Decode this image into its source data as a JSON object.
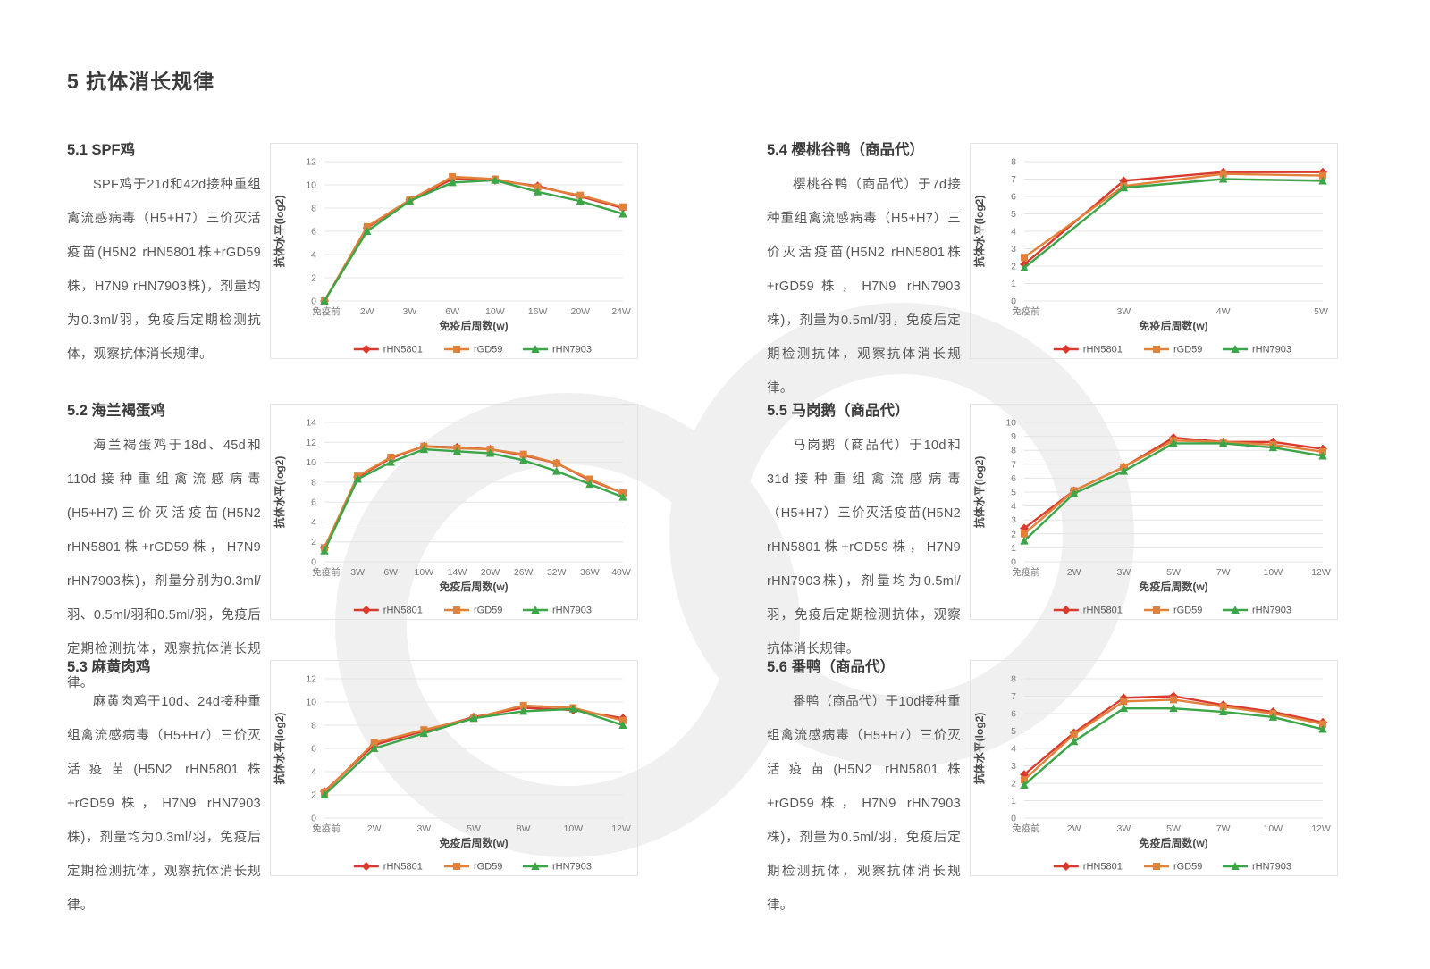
{
  "page": {
    "title": "5 抗体消长规律"
  },
  "colors": {
    "rHN5801": "#d93a2e",
    "rGD59": "#e0823c",
    "rHN7903": "#3ba548",
    "grid": "#e4e4e4",
    "tick_text": "#787878",
    "axis_title": "#4a4a4a",
    "heading": "#3b3b3b",
    "body_text": "#565656",
    "watermark": "#f0f0f0"
  },
  "legend": {
    "items": [
      "rHN5801",
      "rGD59",
      "rHN7903"
    ]
  },
  "sections": [
    {
      "heading": "5.1 SPF鸡",
      "body": "SPF鸡于21d和42d接种重组禽流感病毒（H5+H7）三价灭活疫苗(H5N2 rHN5801株+rGD59株，H7N9 rHN7903株)，剂量均为0.3ml/羽，免疫后定期检测抗体，观察抗体消长规律。"
    },
    {
      "heading": "5.2 海兰褐蛋鸡",
      "body": "海兰褐蛋鸡于18d、45d和110d接种重组禽流感病毒(H5+H7)三价灭活疫苗(H5N2 rHN5801株+rGD59株，H7N9 rHN7903株)，剂量分别为0.3ml/羽、0.5ml/羽和0.5ml/羽，免疫后定期检测抗体，观察抗体消长规律。"
    },
    {
      "heading": "5.3 麻黄肉鸡",
      "body": "麻黄肉鸡于10d、24d接种重组禽流感病毒（H5+H7）三价灭活疫苗(H5N2 rHN5801株+rGD59株，H7N9 rHN7903株)，剂量均为0.3ml/羽，免疫后定期检测抗体，观察抗体消长规律。"
    },
    {
      "heading": "5.4 樱桃谷鸭（商品代）",
      "body": "樱桃谷鸭（商品代）于7d接种重组禽流感病毒（H5+H7）三价灭活疫苗(H5N2 rHN5801株+rGD59株，H7N9 rHN7903株)，剂量为0.5ml/羽，免疫后定期检测抗体，观察抗体消长规律。"
    },
    {
      "heading": "5.5 马岗鹅（商品代）",
      "body": "马岗鹅（商品代）于10d和31d接种重组禽流感病毒（H5+H7）三价灭活疫苗(H5N2 rHN5801株+rGD59株，H7N9 rHN7903株)，剂量均为0.5ml/羽，免疫后定期检测抗体，观察抗体消长规律。"
    },
    {
      "heading": "5.6 番鸭（商品代）",
      "body": "番鸭（商品代）于10d接种重组禽流感病毒（H5+H7）三价灭活疫苗(H5N2 rHN5801株+rGD59株，H7N9 rHN7903株)，剂量为0.5ml/羽，免疫后定期检测抗体，观察抗体消长规律。"
    }
  ],
  "chart_data": [
    {
      "type": "line",
      "title": "5.1 SPF鸡",
      "categories": [
        "免疫前",
        "2W",
        "3W",
        "6W",
        "10W",
        "16W",
        "20W",
        "24W"
      ],
      "xlabel": "免疫后周数(w)",
      "ylabel": "抗体水平(log2)",
      "ylim": [
        0,
        12
      ],
      "ystep": 2,
      "grid": true,
      "legend_position": "bottom",
      "series": [
        {
          "name": "rHN5801",
          "color": "#d93a2e",
          "marker": "diamond",
          "values": [
            0,
            6.3,
            8.7,
            10.5,
            10.4,
            9.9,
            9.0,
            8.0
          ]
        },
        {
          "name": "rGD59",
          "color": "#e0823c",
          "marker": "square",
          "values": [
            0,
            6.4,
            8.7,
            10.7,
            10.5,
            9.8,
            9.1,
            8.1
          ]
        },
        {
          "name": "rHN7903",
          "color": "#3ba548",
          "marker": "triangle",
          "values": [
            0,
            6.0,
            8.6,
            10.2,
            10.4,
            9.4,
            8.6,
            7.5
          ]
        }
      ]
    },
    {
      "type": "line",
      "title": "5.2 海兰褐蛋鸡",
      "categories": [
        "免疫前",
        "3W",
        "6W",
        "10W",
        "14W",
        "20W",
        "26W",
        "32W",
        "36W",
        "40W"
      ],
      "xlabel": "免疫后周数(w)",
      "ylabel": "抗体水平(log2)",
      "ylim": [
        0,
        14
      ],
      "ystep": 2,
      "grid": true,
      "legend_position": "bottom",
      "series": [
        {
          "name": "rHN5801",
          "color": "#d93a2e",
          "marker": "diamond",
          "values": [
            1.4,
            8.5,
            10.4,
            11.6,
            11.5,
            11.3,
            10.7,
            9.9,
            8.2,
            6.9
          ]
        },
        {
          "name": "rGD59",
          "color": "#e0823c",
          "marker": "square",
          "values": [
            1.4,
            8.6,
            10.5,
            11.6,
            11.4,
            11.3,
            10.8,
            9.9,
            8.3,
            6.9
          ]
        },
        {
          "name": "rHN7903",
          "color": "#3ba548",
          "marker": "triangle",
          "values": [
            1.1,
            8.3,
            10.0,
            11.3,
            11.1,
            10.9,
            10.2,
            9.1,
            7.8,
            6.5
          ]
        }
      ]
    },
    {
      "type": "line",
      "title": "5.3 麻黄肉鸡",
      "categories": [
        "免疫前",
        "2W",
        "3W",
        "5W",
        "8W",
        "10W",
        "12W"
      ],
      "xlabel": "免疫后周数(w)",
      "ylabel": "抗体水平(log2)",
      "ylim": [
        0,
        12
      ],
      "ystep": 2,
      "grid": true,
      "legend_position": "bottom",
      "series": [
        {
          "name": "rHN5801",
          "color": "#d93a2e",
          "marker": "diamond",
          "values": [
            2.3,
            6.3,
            7.5,
            8.7,
            9.5,
            9.3,
            8.6
          ]
        },
        {
          "name": "rGD59",
          "color": "#e0823c",
          "marker": "square",
          "values": [
            2.2,
            6.5,
            7.6,
            8.6,
            9.7,
            9.5,
            8.4
          ]
        },
        {
          "name": "rHN7903",
          "color": "#3ba548",
          "marker": "triangle",
          "values": [
            2.0,
            6.0,
            7.3,
            8.6,
            9.2,
            9.4,
            8.0
          ]
        }
      ]
    },
    {
      "type": "line",
      "title": "5.4 樱桃谷鸭（商品代）",
      "categories": [
        "免疫前",
        "3W",
        "4W",
        "5W"
      ],
      "xlabel": "免疫后周数(w)",
      "ylabel": "抗体水平(log2)",
      "ylim": [
        0,
        8
      ],
      "ystep": 1,
      "grid": true,
      "legend_position": "bottom",
      "series": [
        {
          "name": "rHN5801",
          "color": "#d93a2e",
          "marker": "diamond",
          "values": [
            2.1,
            6.9,
            7.4,
            7.4
          ]
        },
        {
          "name": "rGD59",
          "color": "#e0823c",
          "marker": "square",
          "values": [
            2.5,
            6.6,
            7.3,
            7.2
          ]
        },
        {
          "name": "rHN7903",
          "color": "#3ba548",
          "marker": "triangle",
          "values": [
            1.9,
            6.5,
            7.0,
            6.9
          ]
        }
      ]
    },
    {
      "type": "line",
      "title": "5.5 马岗鹅（商品代）",
      "categories": [
        "免疫前",
        "2W",
        "3W",
        "5W",
        "7W",
        "10W",
        "12W"
      ],
      "xlabel": "免疫后周数(w)",
      "ylabel": "抗体水平(log2)",
      "ylim": [
        0,
        10
      ],
      "ystep": 1,
      "grid": true,
      "legend_position": "bottom",
      "series": [
        {
          "name": "rHN5801",
          "color": "#d93a2e",
          "marker": "diamond",
          "values": [
            2.4,
            5.1,
            6.8,
            8.9,
            8.6,
            8.6,
            8.1
          ]
        },
        {
          "name": "rGD59",
          "color": "#e0823c",
          "marker": "square",
          "values": [
            2.0,
            5.1,
            6.8,
            8.7,
            8.6,
            8.4,
            7.9
          ]
        },
        {
          "name": "rHN7903",
          "color": "#3ba548",
          "marker": "triangle",
          "values": [
            1.5,
            4.9,
            6.5,
            8.5,
            8.5,
            8.2,
            7.6
          ]
        }
      ]
    },
    {
      "type": "line",
      "title": "5.6 番鸭（商品代）",
      "categories": [
        "免疫前",
        "2W",
        "3W",
        "5W",
        "7W",
        "10W",
        "12W"
      ],
      "xlabel": "免疫后周数(w)",
      "ylabel": "抗体水平(log2)",
      "ylim": [
        0,
        8
      ],
      "ystep": 1,
      "grid": true,
      "legend_position": "bottom",
      "series": [
        {
          "name": "rHN5801",
          "color": "#d93a2e",
          "marker": "diamond",
          "values": [
            2.5,
            4.9,
            6.9,
            7.0,
            6.5,
            6.1,
            5.5
          ]
        },
        {
          "name": "rGD59",
          "color": "#e0823c",
          "marker": "square",
          "values": [
            2.2,
            4.8,
            6.7,
            6.8,
            6.4,
            6.0,
            5.4
          ]
        },
        {
          "name": "rHN7903",
          "color": "#3ba548",
          "marker": "triangle",
          "values": [
            1.9,
            4.4,
            6.3,
            6.3,
            6.1,
            5.8,
            5.1
          ]
        }
      ]
    }
  ]
}
